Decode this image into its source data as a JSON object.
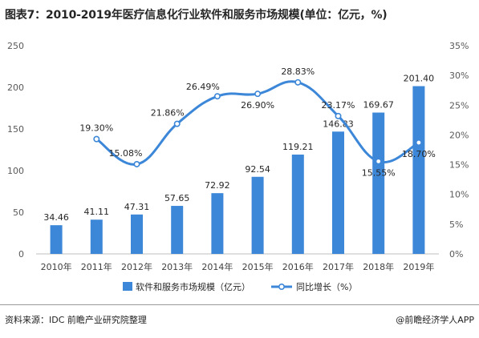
{
  "header": {
    "title": "图表7：2010-2019年医疗信息化行业软件和服务市场规模(单位：亿元，%)"
  },
  "footer": {
    "source": "资料来源：IDC 前瞻产业研究院整理",
    "brand": "@前瞻经济学人APP"
  },
  "chart_data": {
    "type": "bar",
    "categories": [
      "2010年",
      "2011年",
      "2012年",
      "2013年",
      "2014年",
      "2015年",
      "2016年",
      "2017年",
      "2018年",
      "2019年"
    ],
    "series": [
      {
        "name": "软件和服务市场规模（亿元）",
        "type": "bar",
        "axis": "left",
        "color": "#3d87d8",
        "values": [
          34.46,
          41.11,
          47.31,
          57.65,
          72.92,
          92.54,
          119.21,
          146.83,
          169.67,
          201.4
        ],
        "labels": [
          "34.46",
          "41.11",
          "47.31",
          "57.65",
          "72.92",
          "92.54",
          "119.21",
          "146.83",
          "169.67",
          "201.40"
        ]
      },
      {
        "name": "同比增长（%）",
        "type": "line",
        "axis": "right",
        "color": "#3d87d8",
        "smooth": true,
        "values": [
          null,
          19.3,
          15.08,
          21.86,
          26.49,
          26.9,
          28.83,
          23.17,
          15.55,
          18.7
        ],
        "labels": [
          "",
          "19.30%",
          "15.08%",
          "21.86%",
          "26.49%",
          "26.90%",
          "28.83%",
          "23.17%",
          "15.55%",
          "18.70%"
        ]
      }
    ],
    "y_left": {
      "min": 0,
      "max": 250,
      "ticks": [
        "0",
        "50",
        "100",
        "150",
        "200",
        "250"
      ]
    },
    "y_right": {
      "min": 0,
      "max": 35,
      "ticks": [
        "0%",
        "5%",
        "10%",
        "15%",
        "20%",
        "25%",
        "30%",
        "35%"
      ]
    },
    "grid": false,
    "legend_position": "bottom"
  }
}
